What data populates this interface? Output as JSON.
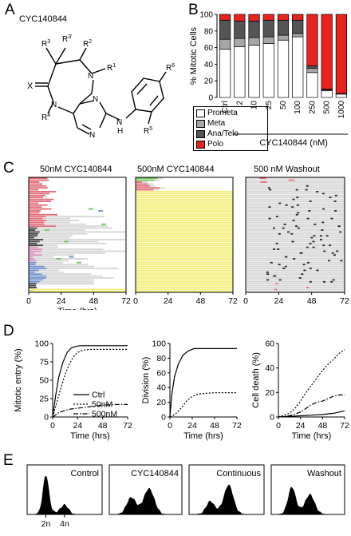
{
  "panels": {
    "a": "A",
    "b": "B",
    "c": "C",
    "d": "D",
    "e": "E"
  },
  "panel_a": {
    "title": "CYC140844",
    "labels": {
      "r1": "R",
      "r1_sub": "1",
      "r2": "R",
      "r2_sub": "2",
      "r3": "R",
      "r3_sub": "3",
      "r3p": "R",
      "r3p_sub": "3'",
      "r4": "R",
      "r4_sub": "4",
      "r5": "R",
      "r5_sub": "5",
      "r6": "R",
      "r6_sub": "6",
      "x": "X",
      "n1": "N",
      "n2": "N",
      "n3": "N",
      "n4": "N",
      "h": "H"
    }
  },
  "panel_b": {
    "ylabel": "% Mitotic Cells",
    "xlabel": "CYC140844 (nM)",
    "legend": [
      "Prometa",
      "Meta",
      "Ana/Telo",
      "Polo"
    ],
    "colors": {
      "Prometa": "#ffffff",
      "Meta": "#a7a7a7",
      "Ana/Telo": "#555555",
      "Polo": "#e8221c"
    }
  },
  "panel_c": {
    "titles": [
      "50nM CYC140844",
      "500nM CYC140844",
      "500 nM Washout"
    ],
    "xticks": [
      "0",
      "24",
      "48",
      "72"
    ],
    "xlabel": "Time (hrs)",
    "colors": {
      "interphase": "#d6d6d6",
      "mitosis_red": "#e26a74",
      "mitosis_dark": "#3e3e3e",
      "mitosis_pink": "#d58ab8",
      "mitosis_blue": "#6d8fc9",
      "death": "#f3ee7a",
      "event_green": "#6fc05a"
    }
  },
  "panel_d": {
    "xlabel": "Time (hrs)",
    "xticks": [
      "0",
      "24",
      "48",
      "72"
    ],
    "legend": [
      "Ctrl",
      "50nM",
      "500nM"
    ]
  },
  "panel_e": {
    "labels": [
      "Control",
      "CYC140844",
      "Continuous",
      "Washout"
    ],
    "peaks": [
      "2n",
      "4n"
    ]
  },
  "chart_data": [
    {
      "type": "bar",
      "stacked": true,
      "categories": [
        "Ctrl",
        "2",
        "10",
        "25",
        "50",
        "100",
        "250",
        "500",
        "1000"
      ],
      "series": [
        {
          "name": "Prometa",
          "values": [
            58,
            61,
            63,
            65,
            69,
            73,
            30,
            8,
            4
          ]
        },
        {
          "name": "Meta",
          "values": [
            12,
            10,
            9,
            8,
            6,
            4,
            5,
            1,
            1
          ]
        },
        {
          "name": "Ana/Telo",
          "values": [
            23,
            21,
            20,
            20,
            18,
            16,
            3,
            1,
            0
          ]
        },
        {
          "name": "Polo",
          "values": [
            7,
            8,
            8,
            7,
            7,
            7,
            62,
            90,
            95
          ]
        }
      ],
      "ylabel": "% Mitotic Cells",
      "xlabel": "CYC140844 (nM)",
      "ylim": [
        0,
        100
      ],
      "yticks": [
        0,
        20,
        40,
        60,
        80,
        100
      ]
    },
    {
      "type": "line",
      "ylabel": "Mitotic entry (%)",
      "xlabel": "Time (hrs)",
      "xlim": [
        0,
        72
      ],
      "ylim": [
        0,
        100
      ],
      "yticks": [
        0,
        25,
        50,
        75,
        100
      ],
      "series": [
        {
          "name": "Ctrl",
          "x": [
            0,
            3,
            6,
            10,
            14,
            18,
            22,
            26,
            30,
            72
          ],
          "y": [
            0,
            30,
            55,
            75,
            88,
            94,
            96,
            97,
            97,
            97
          ]
        },
        {
          "name": "50nM",
          "x": [
            0,
            4,
            8,
            12,
            16,
            20,
            24,
            30,
            36,
            72
          ],
          "y": [
            0,
            20,
            40,
            58,
            72,
            82,
            88,
            91,
            92,
            92
          ]
        },
        {
          "name": "500nM",
          "x": [
            0,
            6,
            12,
            18,
            24,
            36,
            48,
            60,
            72
          ],
          "y": [
            0,
            6,
            9,
            11,
            12,
            14,
            16,
            17,
            17
          ]
        }
      ]
    },
    {
      "type": "line",
      "ylabel": "Division (%)",
      "xlabel": "Time (hrs)",
      "xlim": [
        0,
        72
      ],
      "ylim": [
        0,
        100
      ],
      "yticks": [
        0,
        20,
        40,
        60,
        80,
        100
      ],
      "series": [
        {
          "name": "Ctrl",
          "x": [
            0,
            2,
            5,
            9,
            14,
            20,
            26,
            72
          ],
          "y": [
            0,
            30,
            55,
            72,
            84,
            90,
            93,
            93
          ]
        },
        {
          "name": "50nM",
          "x": [
            0,
            6,
            12,
            18,
            24,
            30,
            36,
            48,
            72
          ],
          "y": [
            0,
            4,
            12,
            22,
            28,
            31,
            32,
            33,
            33
          ]
        }
      ]
    },
    {
      "type": "line",
      "ylabel": "Cell death (%)",
      "xlabel": "Time (hrs)",
      "xlim": [
        0,
        72
      ],
      "ylim": [
        0,
        60
      ],
      "yticks": [
        0,
        20,
        40,
        60
      ],
      "series": [
        {
          "name": "Ctrl",
          "x": [
            0,
            12,
            24,
            36,
            48,
            60,
            72
          ],
          "y": [
            0,
            0.5,
            1,
            1.5,
            2,
            3,
            5
          ]
        },
        {
          "name": "50nM",
          "x": [
            0,
            12,
            18,
            24,
            30,
            36,
            42,
            48,
            54,
            60,
            66,
            72
          ],
          "y": [
            0,
            3,
            7,
            13,
            20,
            26,
            32,
            38,
            43,
            47,
            52,
            55
          ]
        },
        {
          "name": "500nM",
          "x": [
            0,
            12,
            24,
            30,
            36,
            42,
            48,
            54,
            60,
            66,
            72
          ],
          "y": [
            0,
            1,
            4,
            7,
            10,
            12,
            13,
            15,
            17,
            18,
            18
          ]
        }
      ]
    }
  ]
}
